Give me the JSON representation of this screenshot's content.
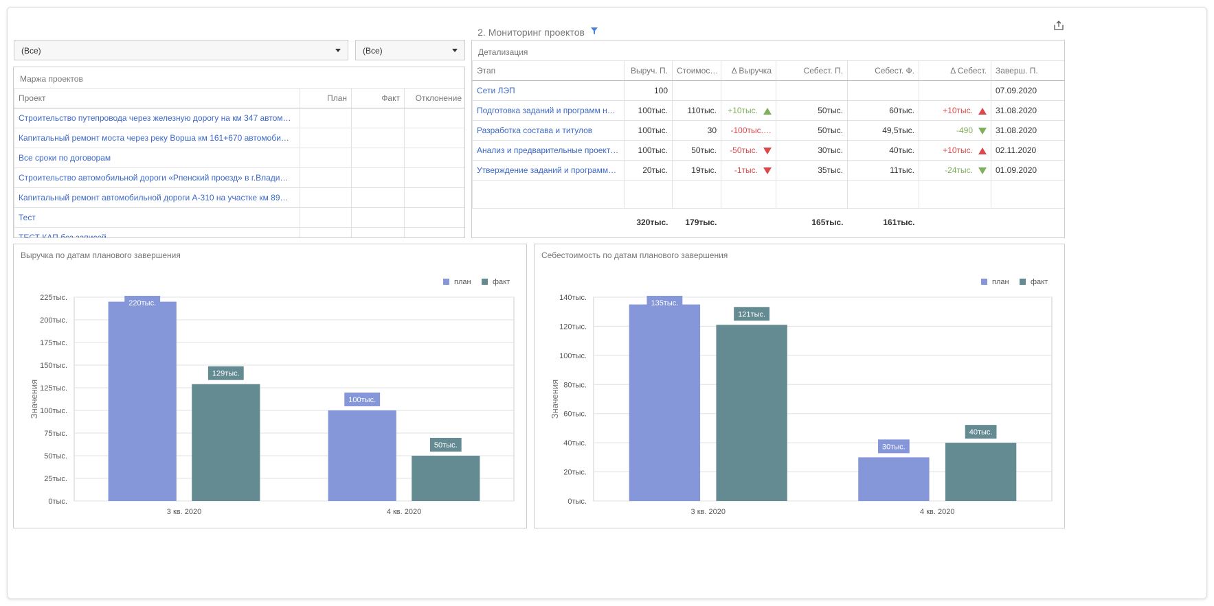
{
  "header": {
    "title": "2. Мониторинг проектов"
  },
  "filters": [
    "(Все)",
    "(Все)"
  ],
  "margin_table": {
    "title": "Маржа проектов",
    "columns": [
      "Проект",
      "План",
      "Факт",
      "Отклонение"
    ],
    "rows": [
      "Строительство путепровода через железную дорогу на км 347 автом…",
      "Капитальный ремонт моста через реку Ворша км 161+670 автомоби…",
      "Все сроки по договорам",
      "Строительство автомобильной дороги «Рпенский проезд» в г.Влади…",
      "Капитальный ремонт автомобильной дороги А-310 на участке км 89…",
      "Тест",
      "ТЕСТ КАП без записей"
    ]
  },
  "detail_table": {
    "title": "Детализация",
    "columns": [
      "Этап",
      "Выруч. П.",
      "Стоимос…",
      "Δ Выручка",
      "Себест. П.",
      "Себест. Ф.",
      "Δ Себест.",
      "Заверш. П."
    ],
    "rows": [
      [
        "Сети ЛЭП",
        "100",
        null,
        null,
        null,
        null,
        null,
        "07.09.2020"
      ],
      [
        "Подготовка заданий и программ н…",
        "100тыс.",
        "110тыс.",
        {
          "text": "+10тыс.",
          "trend": "up",
          "color": "#7fae5c"
        },
        "50тыс.",
        "60тыс.",
        {
          "text": "+10тыс.",
          "trend": "up",
          "color": "#d9484a"
        },
        "31.08.2020"
      ],
      [
        "Разработка состава и титулов",
        "100тыс.",
        "30",
        {
          "text": "-100тыс.…",
          "color": "#d9484a"
        },
        "50тыс.",
        "49,5тыс.",
        {
          "text": "-490",
          "trend": "down",
          "color": "#7fae5c"
        },
        "31.08.2020"
      ],
      [
        "Анализ и предварительные проект…",
        "100тыс.",
        "50тыс.",
        {
          "text": "-50тыс.",
          "trend": "down",
          "color": "#d9484a"
        },
        "30тыс.",
        "40тыс.",
        {
          "text": "+10тыс.",
          "trend": "up",
          "color": "#d9484a"
        },
        "02.11.2020"
      ],
      [
        "Утверждение заданий и программ…",
        "20тыс.",
        "19тыс.",
        {
          "text": "-1тыс.",
          "trend": "down",
          "color": "#d9484a"
        },
        "35тыс.",
        "11тыс.",
        {
          "text": "-24тыс.",
          "trend": "down",
          "color": "#7fae5c"
        },
        "01.09.2020"
      ]
    ],
    "totals": [
      null,
      "320тыс.",
      "179тыс.",
      null,
      "165тыс.",
      "161тыс.",
      null,
      null
    ]
  },
  "chart_data": [
    {
      "type": "bar",
      "title": "Выручка по датам планового завершения",
      "ylabel": "Значения",
      "categories": [
        "3 кв. 2020",
        "4 кв. 2020"
      ],
      "series": [
        {
          "name": "план",
          "color": "#8596d9",
          "values": [
            220000,
            100000
          ],
          "value_labels": [
            "220тыс.",
            "100тыс."
          ]
        },
        {
          "name": "факт",
          "color": "#648a92",
          "values": [
            129000,
            50000
          ],
          "value_labels": [
            "129тыс.",
            "50тыс."
          ]
        }
      ],
      "ylim": [
        0,
        225000
      ],
      "yticks": [
        {
          "value": 0,
          "label": "0тыс."
        },
        {
          "value": 25000,
          "label": "25тыс."
        },
        {
          "value": 50000,
          "label": "50тыс."
        },
        {
          "value": 75000,
          "label": "75тыс."
        },
        {
          "value": 100000,
          "label": "100тыс."
        },
        {
          "value": 125000,
          "label": "125тыс."
        },
        {
          "value": 150000,
          "label": "150тыс."
        },
        {
          "value": 175000,
          "label": "175тыс."
        },
        {
          "value": 200000,
          "label": "200тыс."
        },
        {
          "value": 225000,
          "label": "225тыс."
        }
      ],
      "grid": true,
      "legend": "top-right"
    },
    {
      "type": "bar",
      "title": "Себестоимость по датам планового завершения",
      "ylabel": "Значения",
      "categories": [
        "3 кв. 2020",
        "4 кв. 2020"
      ],
      "series": [
        {
          "name": "план",
          "color": "#8596d9",
          "values": [
            135000,
            30000
          ],
          "value_labels": [
            "135тыс.",
            "30тыс."
          ]
        },
        {
          "name": "факт",
          "color": "#648a92",
          "values": [
            121000,
            40000
          ],
          "value_labels": [
            "121тыс.",
            "40тыс."
          ]
        }
      ],
      "ylim": [
        0,
        140000
      ],
      "yticks": [
        {
          "value": 0,
          "label": "0тыс."
        },
        {
          "value": 20000,
          "label": "20тыс."
        },
        {
          "value": 40000,
          "label": "40тыс."
        },
        {
          "value": 60000,
          "label": "60тыс."
        },
        {
          "value": 80000,
          "label": "80тыс."
        },
        {
          "value": 100000,
          "label": "100тыс."
        },
        {
          "value": 120000,
          "label": "120тыс."
        },
        {
          "value": 140000,
          "label": "140тыс."
        }
      ],
      "grid": true,
      "legend": "top-right"
    }
  ]
}
